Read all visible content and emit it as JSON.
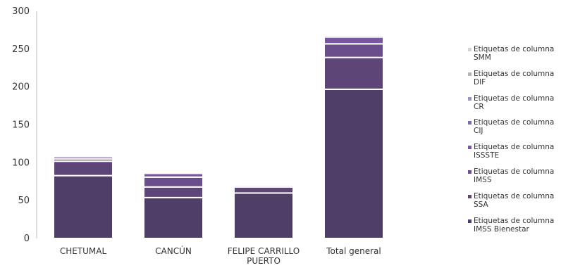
{
  "chart_data": {
    "type": "bar",
    "stacked": true,
    "categories": [
      "CHETUMAL",
      "CANCÚN",
      "FELIPE CARRILLO PUERTO",
      "Total general"
    ],
    "category_label_lines": [
      [
        "CHETUMAL"
      ],
      [
        "CANCÚN"
      ],
      [
        "FELIPE CARRILLO",
        "PUERTO"
      ],
      [
        "Total general"
      ]
    ],
    "ylim": [
      0,
      300
    ],
    "yticks": [
      0,
      50,
      100,
      150,
      200,
      250,
      300
    ],
    "grid": false,
    "legend_position": "right",
    "series": [
      {
        "name": "Etiquetas de columna IMSS Bienestar",
        "color": "#4f3f66",
        "values": [
          83,
          54,
          60,
          197
        ]
      },
      {
        "name": "Etiquetas de columna SSA",
        "color": "#5e4577",
        "values": [
          19,
          14,
          8,
          42
        ]
      },
      {
        "name": "Etiquetas de columna IMSS",
        "color": "#6a4e8b",
        "values": [
          3,
          13,
          2,
          18
        ]
      },
      {
        "name": "Etiquetas de columna ISSSTE",
        "color": "#7a58a0",
        "values": [
          3,
          5,
          1,
          9
        ]
      },
      {
        "name": "Etiquetas de columna CIJ",
        "color": "#7d6aa6",
        "values": [
          1,
          1,
          1,
          2
        ]
      },
      {
        "name": "Etiquetas de columna CR",
        "color": "#9d93bc",
        "values": [
          0,
          0,
          0,
          0
        ]
      },
      {
        "name": "Etiquetas de columna DIF",
        "color": "#b3b1be",
        "values": [
          0,
          0,
          0,
          0
        ]
      },
      {
        "name": "Etiquetas de columna SMM",
        "color": "#d3d3d6",
        "values": [
          0,
          0,
          0,
          0
        ]
      }
    ]
  },
  "legend_items_top_to_bottom": [
    {
      "line1": "Etiquetas de columna",
      "line2": "SMM",
      "color": "#d3d3d6"
    },
    {
      "line1": "Etiquetas de columna",
      "line2": "DIF",
      "color": "#b3b1be"
    },
    {
      "line1": "Etiquetas de columna",
      "line2": "CR",
      "color": "#9d93bc"
    },
    {
      "line1": "Etiquetas de columna",
      "line2": "CIJ",
      "color": "#7d6aa6"
    },
    {
      "line1": "Etiquetas de columna",
      "line2": "ISSSTE",
      "color": "#7a58a0"
    },
    {
      "line1": "Etiquetas de columna",
      "line2": "IMSS",
      "color": "#6a4e8b"
    },
    {
      "line1": "Etiquetas de columna",
      "line2": "SSA",
      "color": "#5e4577"
    },
    {
      "line1": "Etiquetas de columna",
      "line2": "IMSS Bienestar",
      "color": "#4f3f66"
    }
  ]
}
